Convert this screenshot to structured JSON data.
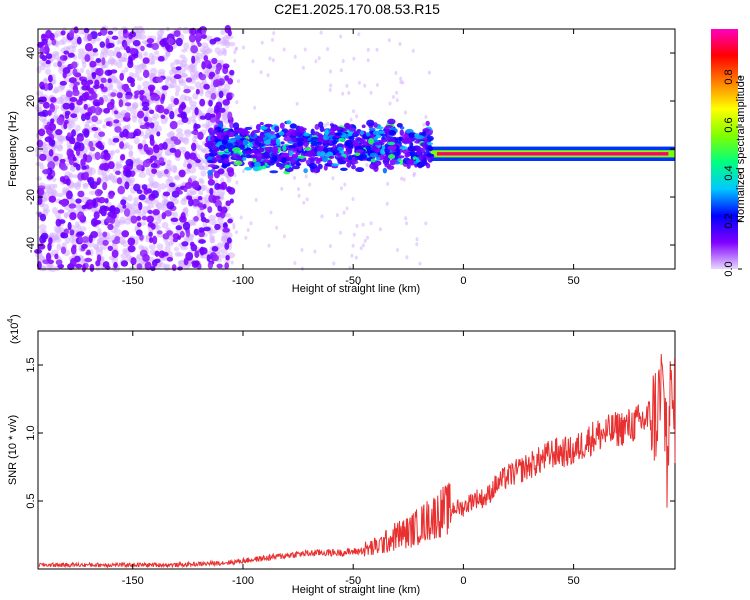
{
  "title": "C2E1.2025.170.08.53.R15",
  "chart_data": [
    {
      "type": "heatmap",
      "xlabel": "Height of straight line (km)",
      "ylabel": "Frequency (Hz)",
      "xlim": [
        -193,
        96
      ],
      "ylim": [
        -50,
        50
      ],
      "xticks": [
        "-150",
        "-100",
        "-50",
        "0",
        "50"
      ],
      "xtick_values": [
        -150,
        -100,
        -50,
        0,
        50
      ],
      "yticks": [
        "40",
        "20",
        "0",
        "-20",
        "-40"
      ],
      "ytick_values": [
        40,
        20,
        0,
        -20,
        -40
      ],
      "colorbar": {
        "label": "Normalized spectral amplitude",
        "range": [
          0,
          1
        ],
        "ticks": [
          "0.0",
          "0.2",
          "0.4",
          "0.6",
          "0.8"
        ],
        "tick_values": [
          0.0,
          0.2,
          0.4,
          0.6,
          0.8
        ],
        "colors": [
          "#e8d8ff",
          "#8000ff",
          "#0000ff",
          "#00c8ff",
          "#00ff80",
          "#80ff00",
          "#ffff00",
          "#ff8000",
          "#ff0000",
          "#ff00c0"
        ]
      },
      "features": {
        "noise_region_x": [
          -193,
          -105
        ],
        "signal_line_x": [
          -15,
          96
        ],
        "signal_line_freq": -2,
        "signal_line_amplitude": 0.95
      }
    },
    {
      "type": "line",
      "xlabel": "Height of straight line (km)",
      "ylabel": "SNR (10 * v/v)",
      "scale_label": "(x10",
      "scale_exp": "4",
      "xlim": [
        -193,
        96
      ],
      "ylim": [
        0,
        1.75
      ],
      "xticks": [
        "-150",
        "-100",
        "-50",
        "0",
        "50"
      ],
      "xtick_values": [
        -150,
        -100,
        -50,
        0,
        50
      ],
      "yticks": [
        "0.5",
        "1.0",
        "1.5"
      ],
      "ytick_values": [
        0.5,
        1.0,
        1.5
      ],
      "line_color": "#e83030",
      "series": [
        {
          "x": [
            -193,
            -170,
            -150,
            -130,
            -115,
            -105,
            -95,
            -85,
            -75,
            -65,
            -55,
            -48,
            -40,
            -35,
            -30,
            -25,
            -20,
            -15,
            -10,
            -5,
            0,
            5,
            10,
            15,
            20,
            25,
            30,
            35,
            40,
            45,
            50,
            55,
            60,
            65,
            70,
            75,
            80,
            85,
            88,
            90,
            92,
            94,
            96
          ],
          "y": [
            0.03,
            0.03,
            0.03,
            0.03,
            0.04,
            0.05,
            0.07,
            0.09,
            0.11,
            0.12,
            0.12,
            0.13,
            0.16,
            0.2,
            0.25,
            0.27,
            0.32,
            0.37,
            0.42,
            0.45,
            0.45,
            0.52,
            0.52,
            0.62,
            0.68,
            0.72,
            0.76,
            0.8,
            0.85,
            0.86,
            0.86,
            0.93,
            0.98,
            1.0,
            1.03,
            1.05,
            1.08,
            1.12,
            1.15,
            1.3,
            1.05,
            1.2,
            1.15
          ]
        }
      ]
    }
  ]
}
